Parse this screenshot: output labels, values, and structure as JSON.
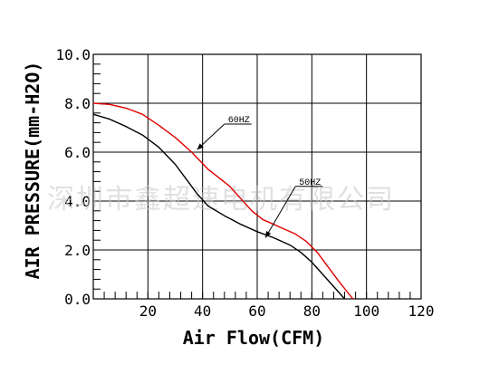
{
  "chart_data": {
    "type": "line",
    "title": "",
    "xlabel": "Air Flow(CFM)",
    "ylabel": "AIR PRESSURE(mm-H2O)",
    "xlim": [
      0,
      120
    ],
    "ylim": [
      0,
      10
    ],
    "x_ticks": [
      20,
      40,
      60,
      80,
      100,
      120
    ],
    "x_tick_labels": [
      "20",
      "40",
      "60",
      "80",
      "100",
      "120"
    ],
    "y_ticks": [
      0,
      2,
      4,
      6,
      8,
      10
    ],
    "y_tick_labels": [
      "0.0",
      "2.0",
      "4.0",
      "6.0",
      "8.0",
      "10.0"
    ],
    "grid": true,
    "series": [
      {
        "name": "60HZ",
        "color": "#e00000",
        "points": [
          [
            0,
            8.0
          ],
          [
            6,
            7.95
          ],
          [
            12,
            7.8
          ],
          [
            18,
            7.55
          ],
          [
            24,
            7.1
          ],
          [
            30,
            6.6
          ],
          [
            36,
            6.0
          ],
          [
            42,
            5.3
          ],
          [
            46,
            4.95
          ],
          [
            50,
            4.6
          ],
          [
            54,
            4.1
          ],
          [
            58,
            3.6
          ],
          [
            62,
            3.25
          ],
          [
            66,
            3.05
          ],
          [
            70,
            2.85
          ],
          [
            74,
            2.65
          ],
          [
            78,
            2.35
          ],
          [
            82,
            1.9
          ],
          [
            86,
            1.3
          ],
          [
            90,
            0.7
          ],
          [
            95,
            0.0
          ]
        ]
      },
      {
        "name": "50HZ",
        "color": "#000000",
        "points": [
          [
            0,
            7.55
          ],
          [
            6,
            7.35
          ],
          [
            12,
            7.05
          ],
          [
            18,
            6.7
          ],
          [
            24,
            6.2
          ],
          [
            30,
            5.5
          ],
          [
            34,
            4.9
          ],
          [
            38,
            4.3
          ],
          [
            42,
            3.8
          ],
          [
            48,
            3.4
          ],
          [
            54,
            3.05
          ],
          [
            60,
            2.75
          ],
          [
            66,
            2.5
          ],
          [
            72,
            2.2
          ],
          [
            76,
            1.9
          ],
          [
            80,
            1.5
          ],
          [
            84,
            1.0
          ],
          [
            88,
            0.5
          ],
          [
            92,
            0.0
          ]
        ]
      }
    ],
    "annotations": [
      {
        "text": "60HZ",
        "arrow_to": [
          38,
          6.1
        ]
      },
      {
        "text": "50HZ",
        "arrow_to": [
          63,
          2.5
        ]
      }
    ]
  },
  "watermark": "深圳市鑫超速电机有限公司",
  "colors": {
    "axis": "#000000",
    "grid": "#000000",
    "background": "#ffffff"
  }
}
